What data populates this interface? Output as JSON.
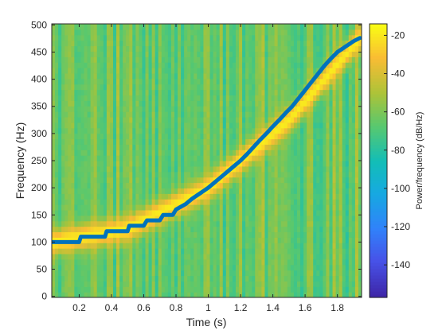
{
  "chart_data": {
    "type": "heatmap",
    "title": "",
    "xlabel": "Time (s)",
    "ylabel": "Frequency (Hz)",
    "xlim": [
      0.03,
      1.95
    ],
    "ylim": [
      -2,
      502
    ],
    "x_ticks": [
      0.2,
      0.4,
      0.6,
      0.8,
      1,
      1.2,
      1.4,
      1.6,
      1.8
    ],
    "x_tick_labels": [
      "0.2",
      "0.4",
      "0.6",
      "0.8",
      "1",
      "1.2",
      "1.4",
      "1.6",
      "1.8"
    ],
    "y_ticks": [
      0,
      50,
      100,
      150,
      200,
      250,
      300,
      350,
      400,
      450,
      500
    ],
    "y_tick_labels": [
      "0",
      "50",
      "100",
      "150",
      "200",
      "250",
      "300",
      "350",
      "400",
      "450",
      "500"
    ],
    "grid": false,
    "colormap": "parula",
    "colorbar": {
      "label": "Power/frequency (dB/Hz)",
      "range": [
        -157,
        -14
      ],
      "ticks": [
        -140,
        -120,
        -100,
        -80,
        -60,
        -40,
        -20
      ],
      "tick_labels": [
        "-140",
        "-120",
        "-100",
        "-80",
        "-60",
        "-40",
        "-20"
      ]
    },
    "background_level_db": -62,
    "ridge": {
      "description_points": [
        {
          "t": 0.03,
          "f": 100
        },
        {
          "t": 0.5,
          "f": 125
        },
        {
          "t": 1.0,
          "f": 200
        },
        {
          "t": 1.5,
          "f": 325
        },
        {
          "t": 1.94,
          "f": 476
        }
      ],
      "peak_level_db": -18
    },
    "overlay_line": {
      "color": "#0072BD",
      "points": [
        [
          0.03,
          100
        ],
        [
          0.2,
          100
        ],
        [
          0.21,
          110
        ],
        [
          0.36,
          110
        ],
        [
          0.37,
          120
        ],
        [
          0.5,
          120
        ],
        [
          0.51,
          130
        ],
        [
          0.6,
          130
        ],
        [
          0.62,
          140
        ],
        [
          0.7,
          140
        ],
        [
          0.72,
          150
        ],
        [
          0.78,
          150
        ],
        [
          0.8,
          160
        ],
        [
          0.86,
          170
        ],
        [
          0.9,
          180
        ],
        [
          0.95,
          190
        ],
        [
          1.0,
          200
        ],
        [
          1.04,
          210
        ],
        [
          1.08,
          220
        ],
        [
          1.12,
          230
        ],
        [
          1.16,
          240
        ],
        [
          1.2,
          250
        ],
        [
          1.24,
          262
        ],
        [
          1.28,
          275
        ],
        [
          1.32,
          288
        ],
        [
          1.36,
          300
        ],
        [
          1.4,
          313
        ],
        [
          1.44,
          325
        ],
        [
          1.48,
          338
        ],
        [
          1.52,
          350
        ],
        [
          1.56,
          365
        ],
        [
          1.6,
          380
        ],
        [
          1.64,
          395
        ],
        [
          1.68,
          410
        ],
        [
          1.72,
          425
        ],
        [
          1.76,
          438
        ],
        [
          1.8,
          450
        ],
        [
          1.85,
          460
        ],
        [
          1.9,
          470
        ],
        [
          1.94,
          476
        ]
      ]
    }
  }
}
